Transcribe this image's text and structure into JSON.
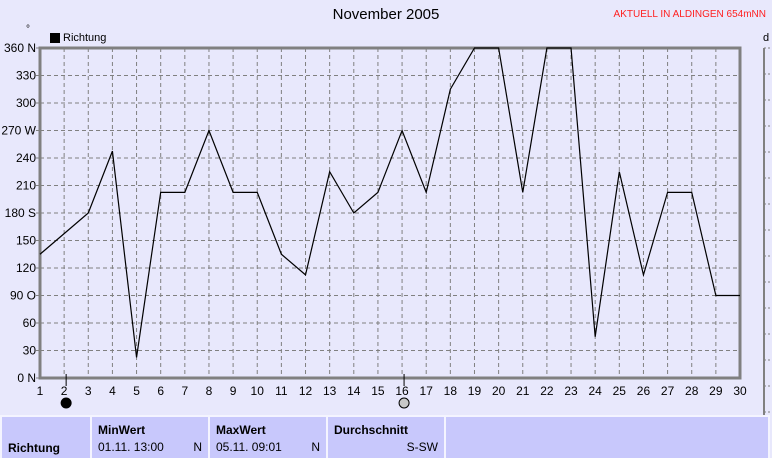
{
  "header": {
    "title": "November 2005",
    "note": "AKTUELL IN ALDINGEN 654mNN",
    "unit": "°",
    "right_axis_label": "d"
  },
  "colors": {
    "background": "#e8e8fc",
    "note": "#ff2020",
    "line": "#000000",
    "grid": "#808080",
    "table": "#c8c8fc"
  },
  "chart_data": {
    "type": "line",
    "title": "November 2005",
    "legend": [
      "Richtung"
    ],
    "legend_placement": "top-left",
    "grid": true,
    "x": [
      1,
      2,
      3,
      4,
      5,
      6,
      7,
      8,
      9,
      10,
      11,
      12,
      13,
      14,
      15,
      16,
      17,
      18,
      19,
      20,
      21,
      22,
      23,
      24,
      25,
      26,
      27,
      28,
      29,
      30
    ],
    "xlim": [
      1,
      30
    ],
    "ylim": [
      0,
      360
    ],
    "yticks": [
      0,
      30,
      60,
      90,
      120,
      150,
      180,
      210,
      240,
      270,
      300,
      330,
      360
    ],
    "ytick_labels": [
      "0  N",
      "30",
      "60",
      "90  O",
      "120",
      "150",
      "180 S",
      "210",
      "240",
      "270 W",
      "300",
      "330",
      "360 N"
    ],
    "series": [
      {
        "name": "Richtung",
        "values": [
          135,
          157.5,
          180,
          247.5,
          22.5,
          202.5,
          202.5,
          270,
          202.5,
          202.5,
          135,
          112.5,
          225,
          180,
          202.5,
          270,
          202.5,
          315,
          360,
          360,
          202.5,
          360,
          360,
          45,
          225,
          112.5,
          202.5,
          202.5,
          90,
          90
        ]
      }
    ],
    "moon_phases": [
      {
        "day": 2,
        "phase": "new-moon"
      },
      {
        "day": 16,
        "phase": "full-moon"
      }
    ]
  },
  "stats": {
    "row_label": "Richtung",
    "min": {
      "label": "MinWert",
      "date": "01.11.  13:00",
      "value": "N"
    },
    "max": {
      "label": "MaxWert",
      "date": "05.11.  09:01",
      "value": "N"
    },
    "avg": {
      "label": "Durchschnitt",
      "value": "S-SW"
    }
  }
}
